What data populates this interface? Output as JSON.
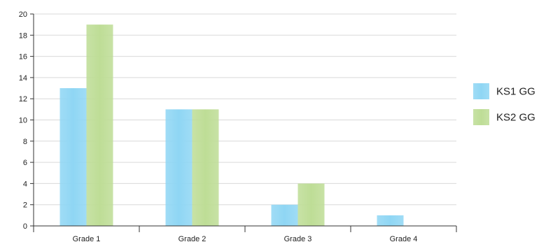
{
  "chart_data": {
    "type": "bar",
    "categories": [
      "Grade 1",
      "Grade 2",
      "Grade 3",
      "Grade 4"
    ],
    "series": [
      {
        "name": "KS1 GG",
        "values": [
          13,
          11,
          2,
          1
        ],
        "color": "#8fd6f4"
      },
      {
        "name": "KS2 GG",
        "values": [
          19,
          11,
          4,
          0
        ],
        "color": "#bedd96"
      }
    ],
    "ylim": [
      0,
      20
    ],
    "y_ticks": [
      0,
      2,
      4,
      6,
      8,
      10,
      12,
      14,
      16,
      18,
      20
    ],
    "grid": true,
    "legend": "right",
    "colors": {
      "grid": "#d9d9d9",
      "axis": "#333333"
    }
  }
}
